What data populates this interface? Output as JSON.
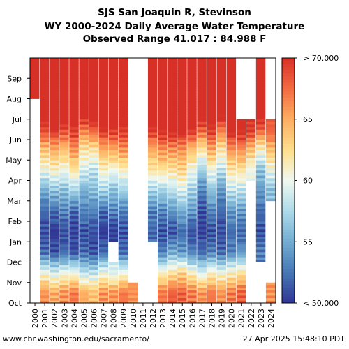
{
  "chart_data": {
    "type": "heatmap",
    "title": [
      "SJS San Joaquin R, Stevinson",
      "WY 2000-2024 Daily Average Water Temperature",
      "Observed Range 41.017 : 84.988 F"
    ],
    "x_categories": [
      "2000",
      "2001",
      "2002",
      "2003",
      "2004",
      "2005",
      "2006",
      "2007",
      "2008",
      "2009",
      "2010",
      "2011",
      "2012",
      "2013",
      "2014",
      "2015",
      "2016",
      "2017",
      "2018",
      "2019",
      "2020",
      "2021",
      "2022",
      "2023",
      "2024"
    ],
    "y_categories": [
      "Oct",
      "Nov",
      "Dec",
      "Jan",
      "Feb",
      "Mar",
      "Apr",
      "May",
      "Jun",
      "Jul",
      "Aug",
      "Sep"
    ],
    "colorbar": {
      "min": 50,
      "max": 70,
      "ticks": [
        50,
        55,
        60,
        65,
        70
      ],
      "tick_labels": [
        "< 50.000",
        "55",
        "60",
        "65",
        "> 70.000"
      ]
    },
    "monthly_means_F": {
      "2000": [
        null,
        null,
        null,
        null,
        null,
        null,
        null,
        null,
        null,
        null,
        71,
        73
      ],
      "2001": [
        66,
        60,
        52,
        51,
        52,
        55,
        60,
        64,
        69,
        73,
        73,
        72
      ],
      "2002": [
        65,
        59,
        51,
        50,
        52,
        56,
        61,
        65,
        70,
        74,
        74,
        73
      ],
      "2003": [
        66,
        60,
        52,
        51,
        53,
        56,
        60,
        64,
        69,
        73,
        74,
        72
      ],
      "2004": [
        67,
        60,
        51,
        50,
        52,
        57,
        62,
        66,
        70,
        74,
        74,
        73
      ],
      "2005": [
        65,
        58,
        52,
        51,
        53,
        55,
        59,
        62,
        67,
        73,
        74,
        73
      ],
      "2006": [
        64,
        58,
        51,
        51,
        53,
        56,
        58,
        62,
        68,
        74,
        74,
        73
      ],
      "2007": [
        66,
        60,
        52,
        50,
        52,
        57,
        61,
        65,
        70,
        74,
        74,
        73
      ],
      "2008": [
        66,
        59,
        null,
        50,
        53,
        56,
        60,
        65,
        70,
        75,
        75,
        74
      ],
      "2009": [
        67,
        60,
        52,
        51,
        53,
        57,
        61,
        66,
        70,
        74,
        74,
        73
      ],
      "2010": [
        66,
        null,
        null,
        null,
        null,
        null,
        null,
        null,
        null,
        null,
        null,
        null
      ],
      "2011": [
        null,
        null,
        null,
        null,
        null,
        null,
        null,
        null,
        null,
        null,
        null,
        null
      ],
      "2012": [
        null,
        null,
        null,
        52,
        53,
        57,
        62,
        65,
        70,
        74,
        75,
        73
      ],
      "2013": [
        67,
        61,
        53,
        51,
        53,
        57,
        62,
        66,
        71,
        75,
        75,
        74
      ],
      "2014": [
        68,
        62,
        55,
        51,
        54,
        58,
        62,
        66,
        71,
        75,
        76,
        74
      ],
      "2015": [
        68,
        63,
        54,
        52,
        55,
        59,
        63,
        66,
        71,
        75,
        76,
        74
      ],
      "2016": [
        67,
        61,
        53,
        51,
        54,
        57,
        60,
        64,
        70,
        74,
        74,
        73
      ],
      "2017": [
        66,
        59,
        52,
        50,
        51,
        53,
        57,
        62,
        68,
        73,
        74,
        73
      ],
      "2018": [
        67,
        61,
        53,
        51,
        53,
        56,
        60,
        65,
        70,
        74,
        75,
        73
      ],
      "2019": [
        66,
        60,
        52,
        51,
        52,
        54,
        58,
        62,
        67,
        72,
        74,
        73
      ],
      "2020": [
        67,
        61,
        53,
        52,
        54,
        58,
        62,
        66,
        71,
        75,
        75,
        74
      ],
      "2021": [
        68,
        62,
        54,
        52,
        54,
        58,
        62,
        66,
        71,
        null,
        null,
        null
      ],
      "2022": [
        null,
        null,
        null,
        null,
        null,
        null,
        60,
        64,
        70,
        null,
        null,
        null
      ],
      "2023": [
        null,
        null,
        53,
        51,
        52,
        54,
        56,
        61,
        68,
        73,
        74,
        73
      ],
      "2024": [
        66,
        null,
        null,
        null,
        null,
        56,
        60,
        64,
        68,
        null,
        null,
        null
      ]
    }
  },
  "footer": {
    "left": "www.cbr.washington.edu/sacramento/",
    "right": "27 Apr 2025 15:48:10 PDT"
  }
}
